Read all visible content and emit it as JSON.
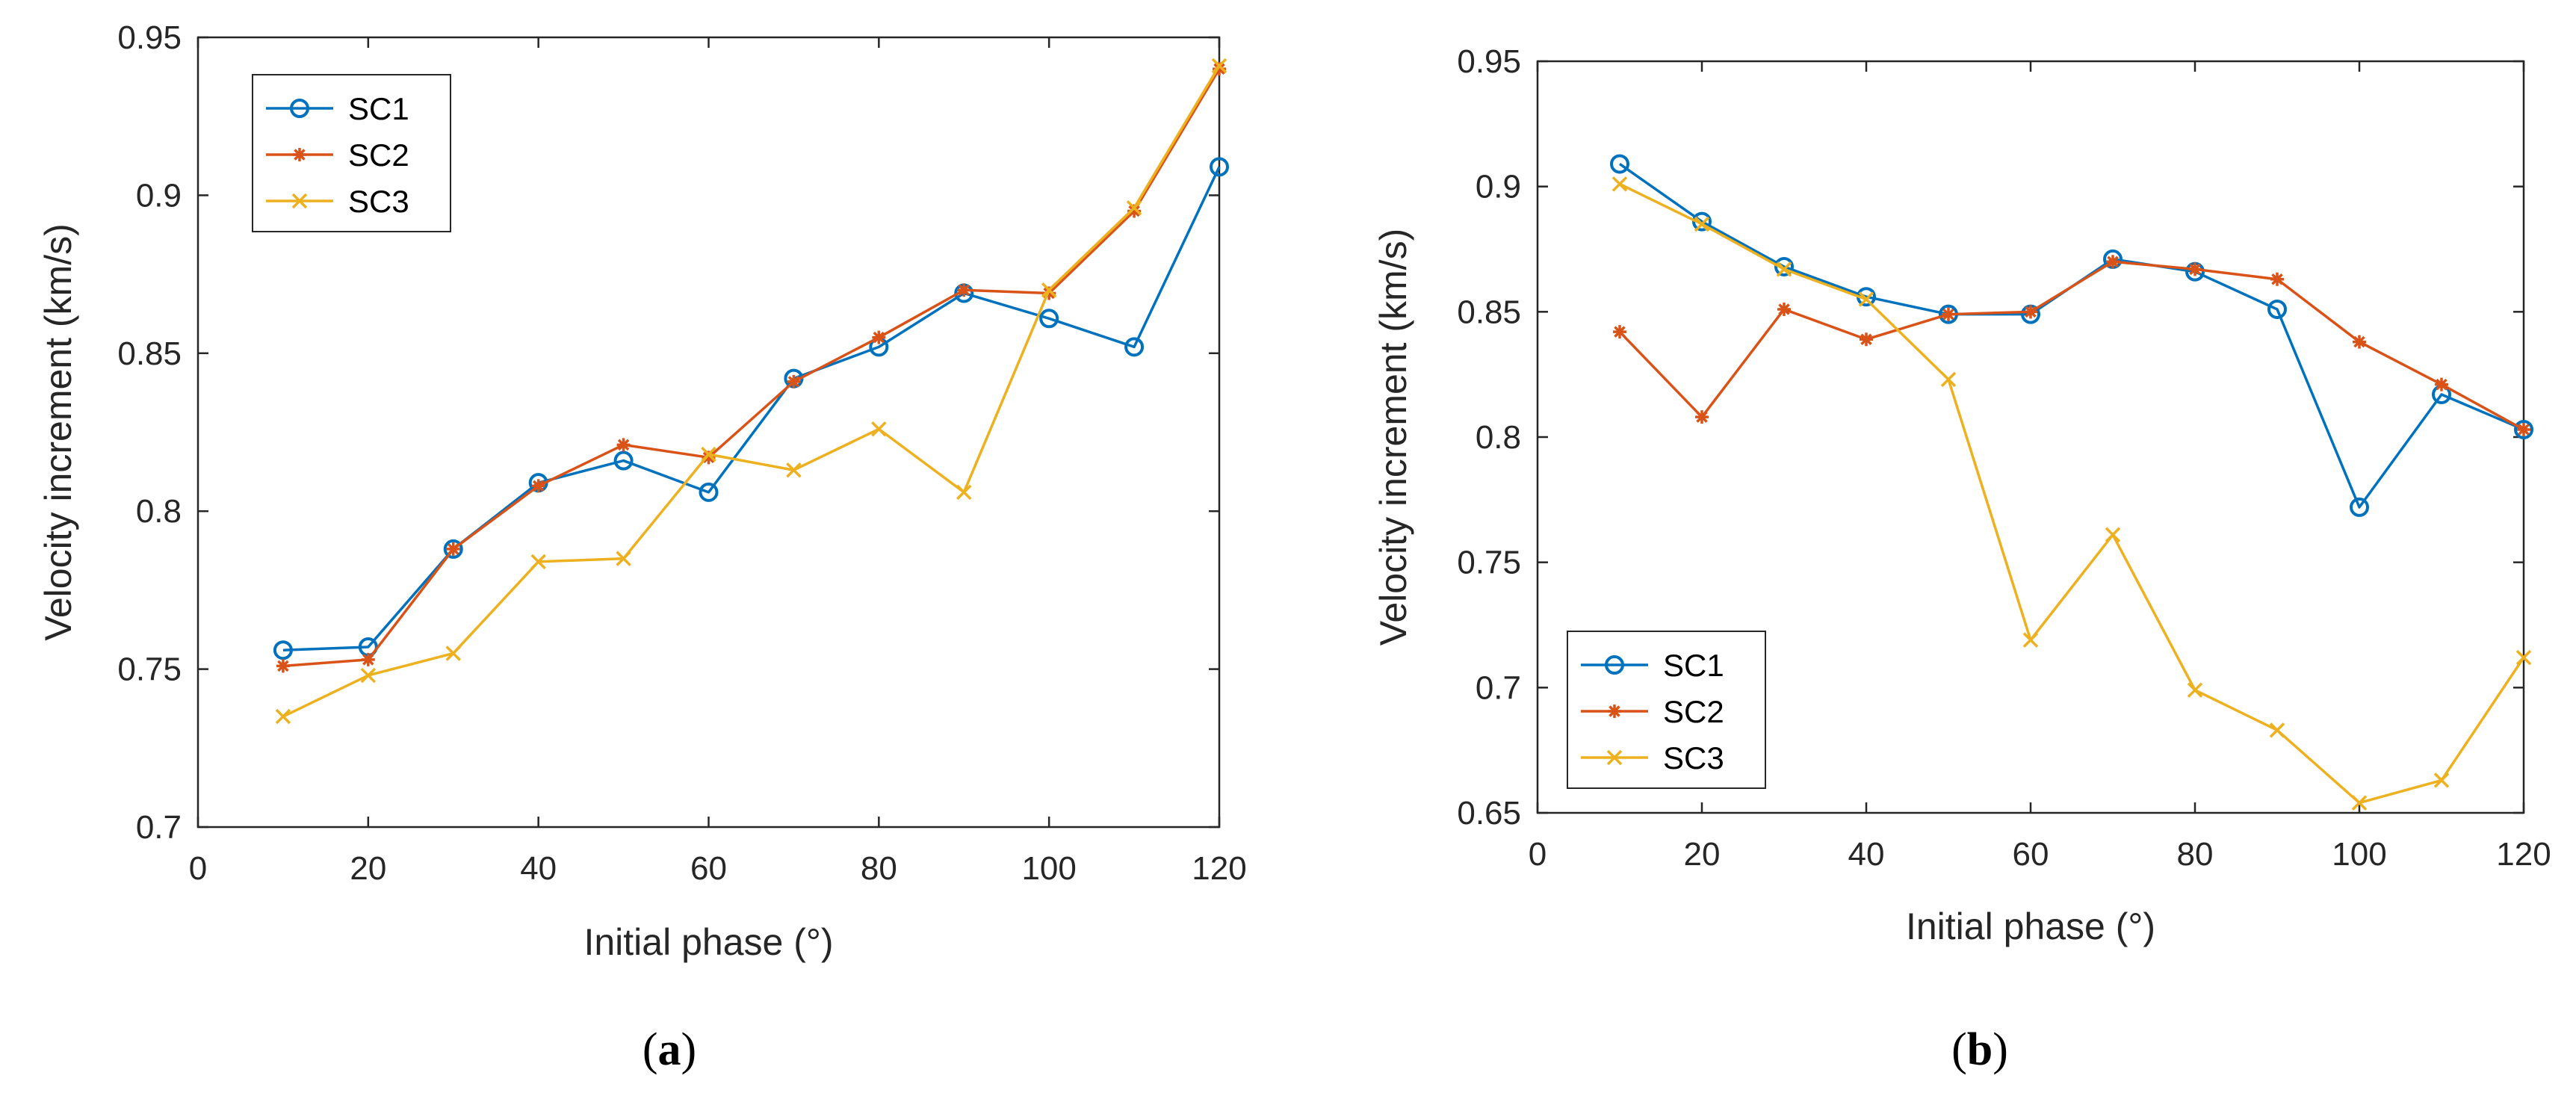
{
  "colors": {
    "SC1": "#0072BD",
    "SC2": "#D95319",
    "SC3": "#EDB120"
  },
  "chart_data": [
    {
      "type": "line",
      "caption_open": "(",
      "caption_letter": "a",
      "caption_close": ")",
      "xlabel": "Initial phase  (°)",
      "ylabel": "Velocity increment  (km/s)",
      "xlim": [
        0,
        120
      ],
      "ylim": [
        0.7,
        0.95
      ],
      "xticks": [
        "0",
        "20",
        "40",
        "60",
        "80",
        "100",
        "120"
      ],
      "yticks": [
        "0.7",
        "0.75",
        "0.8",
        "0.85",
        "0.9",
        "0.95"
      ],
      "legend_position": "top-left",
      "x": [
        10,
        20,
        30,
        40,
        50,
        60,
        70,
        80,
        90,
        100,
        110,
        120
      ],
      "series": [
        {
          "name": "SC1",
          "marker": "circle",
          "values": [
            0.756,
            0.757,
            0.788,
            0.809,
            0.816,
            0.806,
            0.842,
            0.852,
            0.869,
            0.861,
            0.852,
            0.909
          ]
        },
        {
          "name": "SC2",
          "marker": "star",
          "values": [
            0.751,
            0.753,
            0.788,
            0.808,
            0.821,
            0.817,
            0.841,
            0.855,
            0.87,
            0.869,
            0.895,
            0.94
          ]
        },
        {
          "name": "SC3",
          "marker": "x",
          "values": [
            0.735,
            0.748,
            0.755,
            0.784,
            0.785,
            0.818,
            0.813,
            0.826,
            0.806,
            0.87,
            0.896,
            0.941
          ]
        }
      ]
    },
    {
      "type": "line",
      "caption_open": "(",
      "caption_letter": "b",
      "caption_close": ")",
      "xlabel": "Initial phase  (°)",
      "ylabel": "Velocity increment  (km/s)",
      "xlim": [
        0,
        120
      ],
      "ylim": [
        0.65,
        0.95
      ],
      "xticks": [
        "0",
        "20",
        "40",
        "60",
        "80",
        "100",
        "120"
      ],
      "yticks": [
        "0.65",
        "0.7",
        "0.75",
        "0.8",
        "0.85",
        "0.9",
        "0.95"
      ],
      "legend_position": "bottom-left",
      "x": [
        10,
        20,
        30,
        40,
        50,
        60,
        70,
        80,
        90,
        100,
        110,
        120
      ],
      "series": [
        {
          "name": "SC1",
          "marker": "circle",
          "values": [
            0.909,
            0.886,
            0.868,
            0.856,
            0.849,
            0.849,
            0.871,
            0.866,
            0.851,
            0.772,
            0.817,
            0.803
          ]
        },
        {
          "name": "SC2",
          "marker": "star",
          "values": [
            0.842,
            0.808,
            0.851,
            0.839,
            0.849,
            0.85,
            0.87,
            0.867,
            0.863,
            0.838,
            0.821,
            0.803
          ]
        },
        {
          "name": "SC3",
          "marker": "x",
          "values": [
            0.901,
            0.885,
            0.867,
            0.855,
            0.823,
            0.719,
            0.761,
            0.699,
            0.683,
            0.654,
            0.663,
            0.712
          ]
        }
      ]
    }
  ]
}
